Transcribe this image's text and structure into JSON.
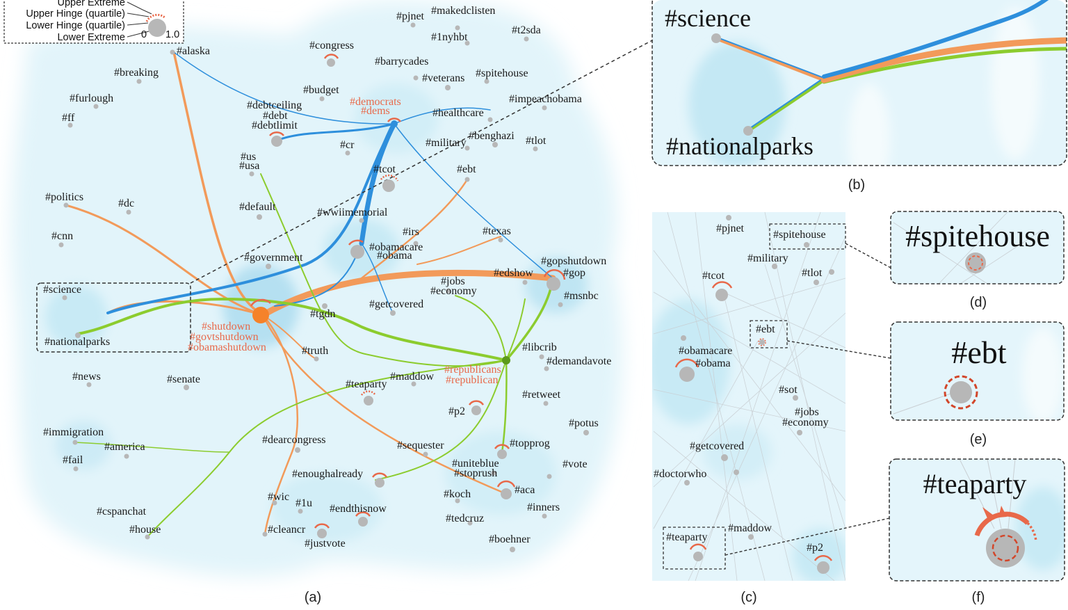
{
  "legend": {
    "labels": [
      "Upper Extreme",
      "Upper Hinge (quartile)",
      "Lower Hinge (quartile)",
      "Lower Extreme"
    ],
    "scale_min": "0",
    "scale_max": "1.0"
  },
  "panels": {
    "a": {
      "caption": "(a)",
      "tags": [
        "#pjnet",
        "#makedclisten",
        "#1nyhbt",
        "#t2sda",
        "#congress",
        "#barrycades",
        "#veterans",
        "#spitehouse",
        "#budget",
        "#alaska",
        "#breaking",
        "#furlough",
        "#ff",
        "#debtceiling",
        "#debt",
        "#debtlimit",
        "#healthcare",
        "#impeachobama",
        "#cr",
        "#military",
        "#benghazi",
        "#tlot",
        "#us",
        "#usa",
        "#tcot",
        "#ebt",
        "#politics",
        "#dc",
        "#default",
        "#wwiimemorial",
        "#cnn",
        "#irs",
        "#texas",
        "#obamacare",
        "#obama",
        "#government",
        "#gopshutdown",
        "#gop",
        "#edshow",
        "#science",
        "#jobs",
        "#economy",
        "#msnbc",
        "#getcovered",
        "#tgdn",
        "#nationalparks",
        "#truth",
        "#libcrib",
        "#demandavote",
        "#maddow",
        "#teaparty",
        "#news",
        "#senate",
        "#retweet",
        "#p2",
        "#potus",
        "#immigration",
        "#america",
        "#fail",
        "#dearcongress",
        "#sequester",
        "#topprog",
        "#uniteblue",
        "#stoprush",
        "#vote",
        "#enoughalready",
        "#aca",
        "#wic",
        "#1u",
        "#endthisnow",
        "#koch",
        "#inners",
        "#cspanchat",
        "#house",
        "#cleancr",
        "#justvote",
        "#tedcruz",
        "#boehner"
      ],
      "red_tags": [
        "#democrats",
        "#dems",
        "#shutdown",
        "#govtshutdown",
        "#obamashutdown",
        "#republicans",
        "#republican"
      ]
    },
    "b": {
      "caption": "(b)",
      "tags": [
        "#science",
        "#nationalparks"
      ]
    },
    "c": {
      "caption": "(c)",
      "tags": [
        "#pjnet",
        "#spitehouse",
        "#military",
        "#tcot",
        "#tlot",
        "#ebt",
        "#obamacare",
        "#obama",
        "#sot",
        "#jobs",
        "#economy",
        "#getcovered",
        "#doctorwho",
        "#maddow",
        "#teaparty",
        "#p2"
      ]
    },
    "d": {
      "caption": "(d)",
      "tag": "#spitehouse"
    },
    "e": {
      "caption": "(e)",
      "tag": "#ebt"
    },
    "f": {
      "caption": "(f)",
      "tag": "#teaparty"
    }
  },
  "colors": {
    "democrat_blue": "#2e8fdc",
    "shutdown_orange": "#f29a5a",
    "republican_green": "#8ccc2e",
    "red_label": "#e8694a",
    "density_light": "#dff3fa",
    "density_mid": "#bfe6f3",
    "node_gray": "#b7b7b7"
  }
}
